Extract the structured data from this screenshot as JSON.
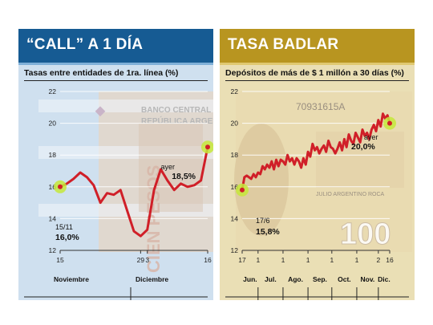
{
  "colors": {
    "line": "#d01f28",
    "left_header": "#165b93",
    "right_header": "#b89520",
    "marker": "#c6e83a"
  },
  "left": {
    "title": "“CALL” A 1 DÍA",
    "subtitle": "Tasas entre entidades de 1ra. línea (%)",
    "banknote_line1": "BANCO CENTRAL DE LA",
    "banknote_line2": "REPÚBLICA ARGENTINA",
    "banknote_word": "CIEN PESOS",
    "month_labels": [
      "Noviembre",
      "Diciembre"
    ],
    "start_date": "15/11",
    "start_value": "16,0%",
    "end_label": "ayer",
    "end_value": "18,5%"
  },
  "right": {
    "title": "TASA BADLAR",
    "subtitle": "Depósitos de más de $ 1 millón a 30 días (%)",
    "banknote_serial": "70931615A",
    "banknote_denom": "100",
    "banknote_name": "JULIO ARGENTINO ROCA",
    "month_labels": [
      "Jun.",
      "Jul.",
      "Ago.",
      "Sep.",
      "Oct.",
      "Nov.",
      "Dic."
    ],
    "start_date": "17/6",
    "start_value": "15,8%",
    "end_label": "ayer",
    "end_value": "20,0%"
  },
  "chart_data": [
    {
      "type": "line",
      "title": "“CALL” A 1 DÍA",
      "subtitle": "Tasas entre entidades de 1ra. línea (%)",
      "ylim": [
        12,
        22
      ],
      "yticks": [
        "12",
        "14",
        "16",
        "18",
        "20",
        "22"
      ],
      "xlim": [
        0,
        22
      ],
      "xticks": [
        {
          "x": 0,
          "label": "15"
        },
        {
          "x": 12,
          "label": "29"
        },
        {
          "x": 13,
          "label": "3"
        },
        {
          "x": 22,
          "label": "16"
        }
      ],
      "series": [
        {
          "x": [
            0,
            1,
            2,
            3,
            4,
            5,
            6,
            7,
            8,
            9,
            10,
            11,
            12,
            13,
            14,
            15,
            16,
            17,
            18,
            19,
            20,
            21,
            22
          ],
          "values": [
            16.0,
            16.2,
            16.5,
            16.9,
            16.6,
            16.1,
            15.0,
            15.6,
            15.5,
            15.8,
            14.5,
            13.2,
            12.9,
            13.3,
            15.8,
            17.1,
            16.4,
            15.8,
            16.2,
            16.0,
            16.1,
            16.4,
            18.5
          ]
        }
      ]
    },
    {
      "type": "line",
      "title": "TASA BADLAR",
      "subtitle": "Depósitos de más de $ 1 millón a 30 días (%)",
      "ylim": [
        12,
        22
      ],
      "yticks": [
        "12",
        "14",
        "16",
        "18",
        "20",
        "22"
      ],
      "xlim": [
        0,
        130
      ],
      "xticks": [
        {
          "x": 0,
          "label": "17"
        },
        {
          "x": 14,
          "label": "1"
        },
        {
          "x": 36,
          "label": "1"
        },
        {
          "x": 58,
          "label": "1"
        },
        {
          "x": 79,
          "label": "1"
        },
        {
          "x": 101,
          "label": "1"
        },
        {
          "x": 120,
          "label": "2"
        },
        {
          "x": 130,
          "label": "16"
        }
      ],
      "series": [
        {
          "x": [
            0,
            2,
            4,
            6,
            8,
            10,
            12,
            14,
            16,
            18,
            20,
            22,
            24,
            26,
            28,
            30,
            32,
            34,
            36,
            38,
            40,
            42,
            44,
            46,
            48,
            50,
            52,
            54,
            56,
            58,
            60,
            62,
            64,
            66,
            68,
            70,
            72,
            74,
            76,
            78,
            80,
            82,
            84,
            86,
            88,
            90,
            92,
            94,
            96,
            98,
            100,
            102,
            104,
            106,
            108,
            110,
            112,
            114,
            116,
            118,
            120,
            122,
            124,
            126,
            128,
            130
          ],
          "values": [
            15.8,
            16.6,
            16.7,
            16.6,
            16.5,
            16.8,
            16.6,
            16.9,
            16.8,
            17.3,
            17.1,
            17.4,
            17.2,
            17.6,
            17.1,
            17.7,
            17.3,
            17.7,
            17.6,
            17.4,
            18.0,
            17.6,
            17.8,
            17.4,
            17.8,
            17.6,
            17.2,
            17.8,
            17.4,
            18.2,
            17.9,
            18.7,
            18.3,
            18.5,
            18.1,
            18.4,
            18.6,
            18.2,
            18.9,
            18.5,
            18.4,
            18.1,
            18.4,
            18.8,
            18.3,
            19.0,
            18.5,
            19.3,
            18.9,
            18.7,
            19.4,
            19.1,
            18.8,
            19.6,
            19.2,
            19.4,
            19.0,
            19.6,
            19.9,
            19.5,
            20.2,
            19.8,
            20.6,
            20.3,
            20.5,
            20.0
          ]
        }
      ]
    }
  ]
}
